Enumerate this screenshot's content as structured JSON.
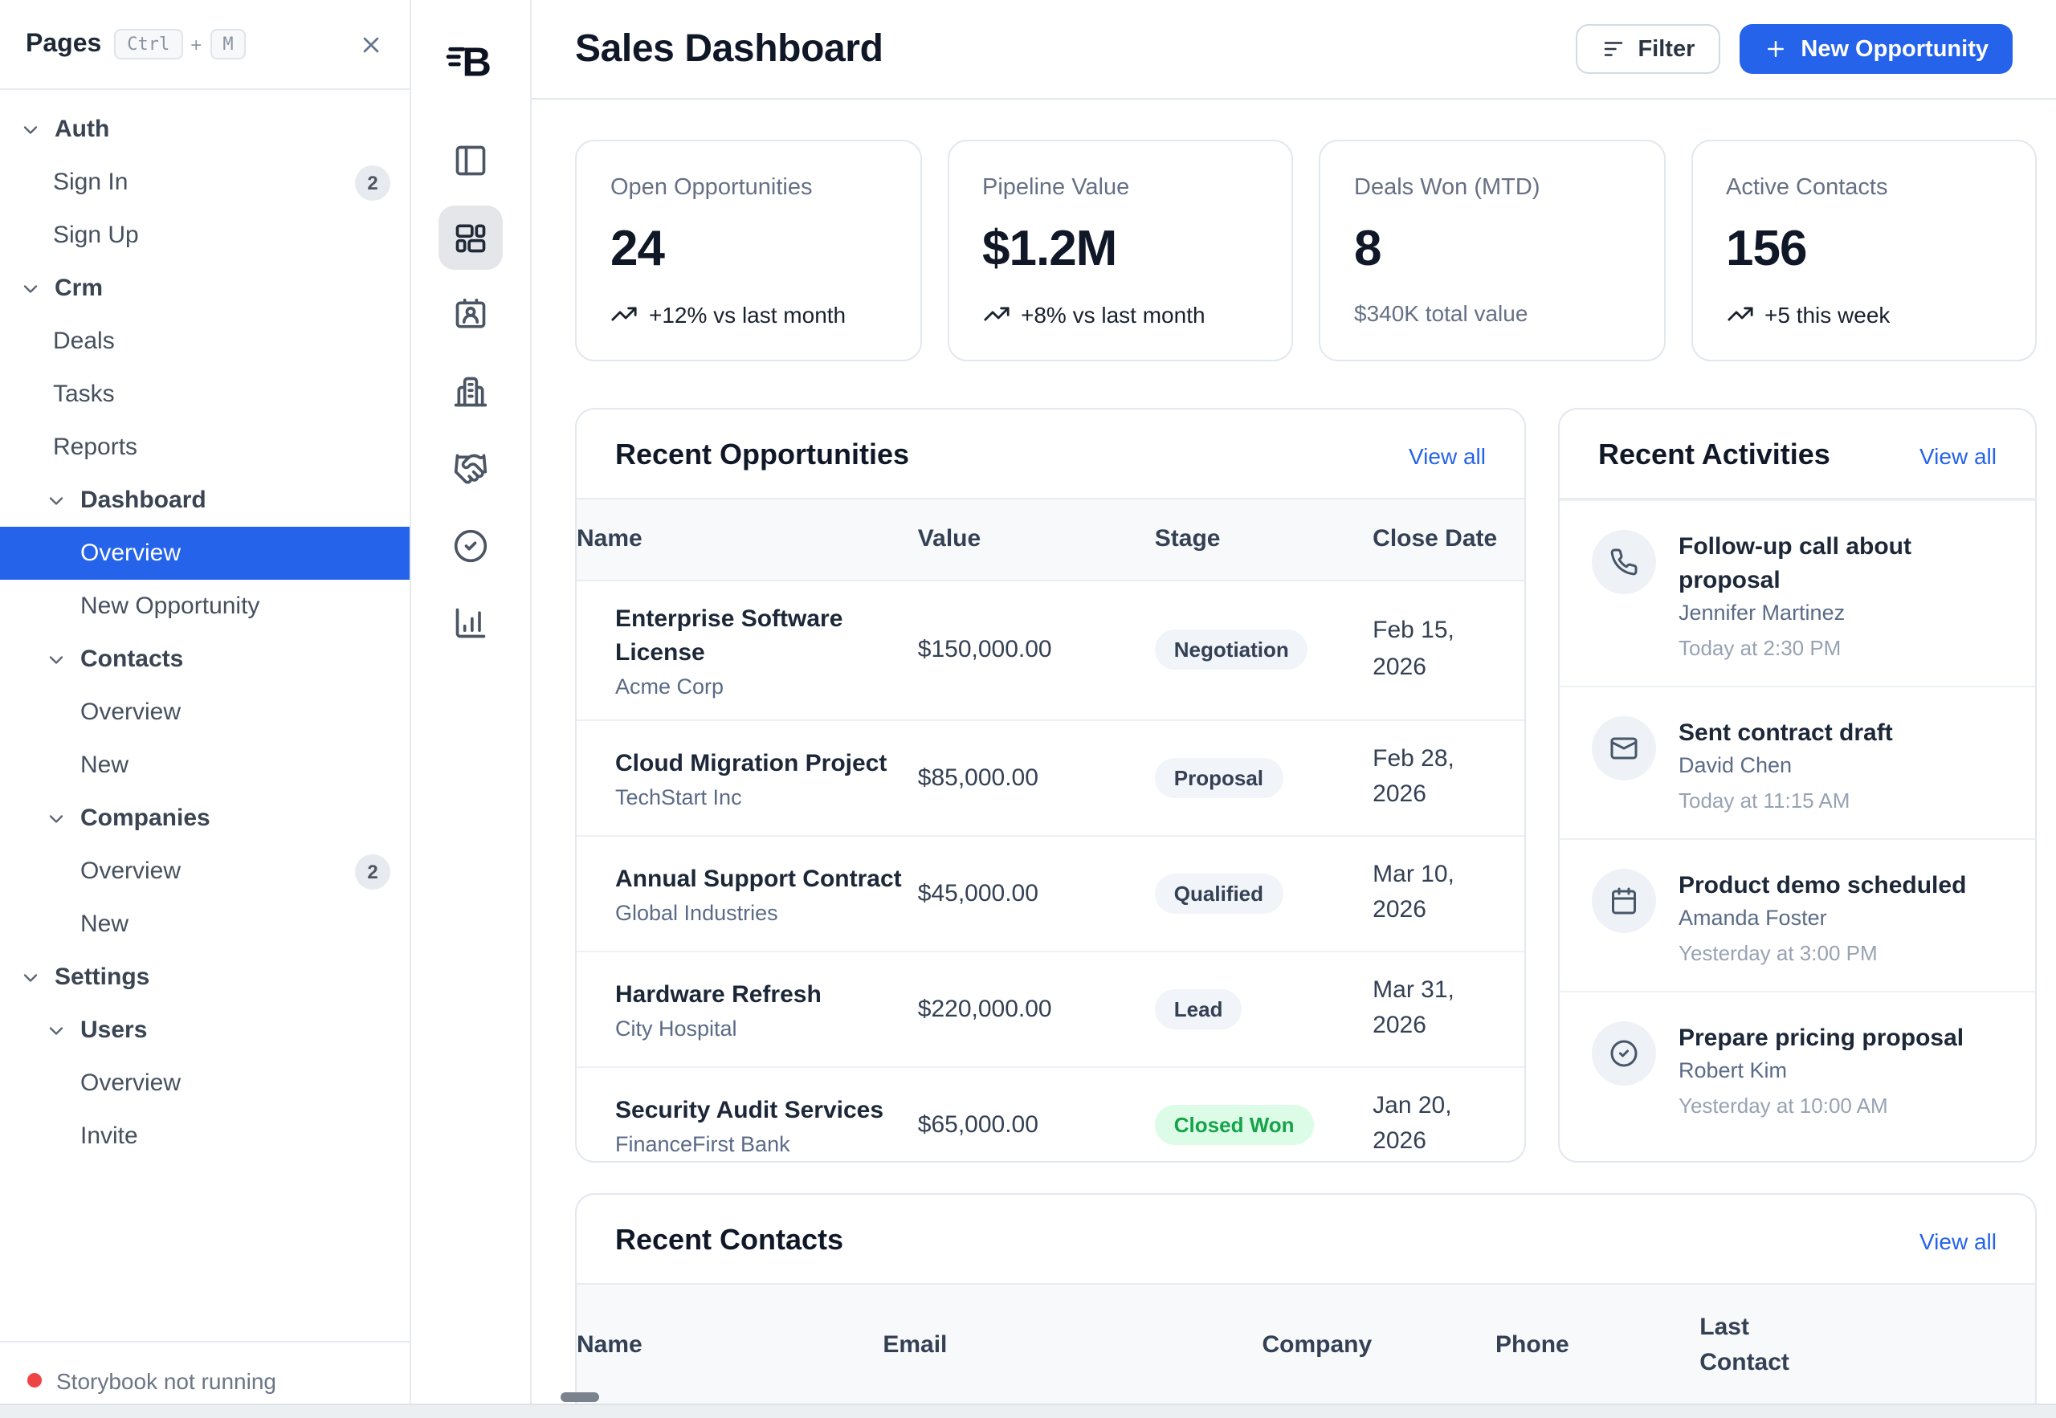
{
  "theme": {
    "accent": "#2563eb",
    "selected_bg": "#2563eb",
    "success_bg": "#dcfce7",
    "success_text": "#16a34a",
    "danger": "#ef4444"
  },
  "sidebar": {
    "title": "Pages",
    "shortcut": {
      "key1": "Ctrl",
      "separator": "+",
      "key2": "M"
    },
    "tree": [
      {
        "label": "Auth",
        "depth": 0,
        "group": true
      },
      {
        "label": "Sign In",
        "depth": 1,
        "badge": "2"
      },
      {
        "label": "Sign Up",
        "depth": 1
      },
      {
        "label": "Crm",
        "depth": 0,
        "group": true
      },
      {
        "label": "Deals",
        "depth": 1
      },
      {
        "label": "Tasks",
        "depth": 1
      },
      {
        "label": "Reports",
        "depth": 1
      },
      {
        "label": "Dashboard",
        "depth": 1,
        "group": true
      },
      {
        "label": "Overview",
        "depth": 2,
        "selected": true
      },
      {
        "label": "New Opportunity",
        "depth": 2
      },
      {
        "label": "Contacts",
        "depth": 1,
        "group": true
      },
      {
        "label": "Overview",
        "depth": 2
      },
      {
        "label": "New",
        "depth": 2
      },
      {
        "label": "Companies",
        "depth": 1,
        "group": true
      },
      {
        "label": "Overview",
        "depth": 2,
        "badge": "2"
      },
      {
        "label": "New",
        "depth": 2
      },
      {
        "label": "Settings",
        "depth": 0,
        "group": true
      },
      {
        "label": "Users",
        "depth": 1,
        "group": true
      },
      {
        "label": "Overview",
        "depth": 2
      },
      {
        "label": "Invite",
        "depth": 2
      }
    ],
    "status": "Storybook not running"
  },
  "rail": {
    "items": [
      {
        "icon": "panel-left"
      },
      {
        "icon": "layout-dashboard",
        "active": true
      },
      {
        "icon": "contact-card"
      },
      {
        "icon": "building"
      },
      {
        "icon": "handshake"
      },
      {
        "icon": "circle-check"
      },
      {
        "icon": "bar-chart"
      }
    ]
  },
  "header": {
    "title": "Sales Dashboard",
    "filter": "Filter",
    "new_opportunity": "New Opportunity"
  },
  "stats": [
    {
      "label": "Open Opportunities",
      "value": "24",
      "note": "+12% vs last month",
      "trend": true
    },
    {
      "label": "Pipeline Value",
      "value": "$1.2M",
      "note": "+8% vs last month",
      "trend": true
    },
    {
      "label": "Deals Won (MTD)",
      "value": "8",
      "note": "$340K total value",
      "muted": true
    },
    {
      "label": "Active Contacts",
      "value": "156",
      "note": "+5 this week",
      "trend": true
    }
  ],
  "opportunities": {
    "title": "Recent Opportunities",
    "view_all": "View all",
    "columns": [
      "Name",
      "Value",
      "Stage",
      "Close Date"
    ],
    "rows": [
      {
        "name": "Enterprise Software License",
        "company": "Acme Corp",
        "value": "$150,000.00",
        "stage": "Negotiation",
        "variant": "default",
        "close": "Feb 15, 2026"
      },
      {
        "name": "Cloud Migration Project",
        "company": "TechStart Inc",
        "value": "$85,000.00",
        "stage": "Proposal",
        "variant": "default",
        "close": "Feb 28, 2026"
      },
      {
        "name": "Annual Support Contract",
        "company": "Global Industries",
        "value": "$45,000.00",
        "stage": "Qualified",
        "variant": "default",
        "close": "Mar 10, 2026"
      },
      {
        "name": "Hardware Refresh",
        "company": "City Hospital",
        "value": "$220,000.00",
        "stage": "Lead",
        "variant": "default",
        "close": "Mar 31, 2026"
      },
      {
        "name": "Security Audit Services",
        "company": "FinanceFirst Bank",
        "value": "$65,000.00",
        "stage": "Closed Won",
        "variant": "success",
        "close": "Jan 20, 2026"
      }
    ]
  },
  "activities": {
    "title": "Recent Activities",
    "view_all": "View all",
    "items": [
      {
        "icon": "phone",
        "title": "Follow-up call about proposal",
        "person": "Jennifer Martinez",
        "time": "Today at 2:30 PM"
      },
      {
        "icon": "mail",
        "title": "Sent contract draft",
        "person": "David Chen",
        "time": "Today at 11:15 AM"
      },
      {
        "icon": "calendar",
        "title": "Product demo scheduled",
        "person": "Amanda Foster",
        "time": "Yesterday at 3:00 PM"
      },
      {
        "icon": "circle-check",
        "title": "Prepare pricing proposal",
        "person": "Robert Kim",
        "time": "Yesterday at 10:00 AM"
      }
    ]
  },
  "contacts": {
    "title": "Recent Contacts",
    "view_all": "View all",
    "columns": [
      "Name",
      "Email",
      "Company",
      "Phone",
      "Last Contact"
    ]
  }
}
